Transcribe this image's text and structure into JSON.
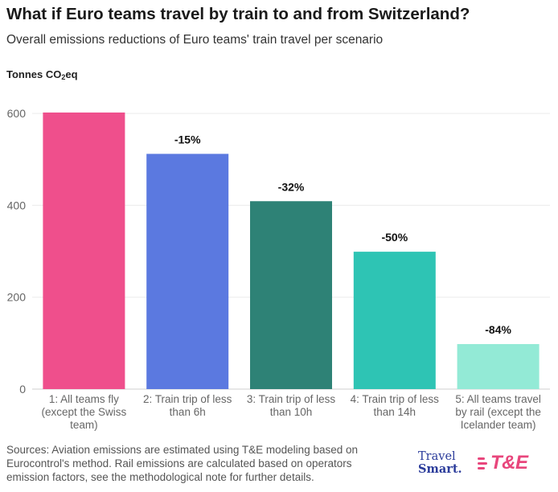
{
  "header": {
    "title": "What if Euro teams travel by train to and from Switzerland?",
    "subtitle": "Overall emissions reductions of Euro teams' train travel per scenario",
    "unit_prefix": "Tonnes CO",
    "unit_sub": "2",
    "unit_suffix": "eq"
  },
  "chart_data": {
    "type": "bar",
    "title": "What if Euro teams travel by train to and from Switzerland?",
    "ylabel": "Tonnes CO2eq",
    "ylim": [
      0,
      650
    ],
    "yticks": [
      0,
      200,
      400,
      600
    ],
    "grid": true,
    "categories": [
      [
        "1: All teams fly",
        "(except the Swiss",
        "team)"
      ],
      [
        "2: Train trip of less",
        "than 6h"
      ],
      [
        "3: Train trip of less",
        "than 10h"
      ],
      [
        "4: Train trip of less",
        "than 14h"
      ],
      [
        "5: All teams travel",
        "by rail (except the",
        "Icelander team)"
      ]
    ],
    "values": [
      602,
      512,
      409,
      299,
      98
    ],
    "data_labels": [
      "",
      "-15%",
      "-32%",
      "-50%",
      "-84%"
    ],
    "colors": [
      "#ef4f8c",
      "#5b79e0",
      "#2e8276",
      "#2ec4b4",
      "#93ead6"
    ]
  },
  "footer": {
    "sources": "Sources: Aviation emissions are estimated using T&E modeling based on Eurocontrol's method. Rail emissions are calculated based on operators emission factors, see the methodological note for further details.",
    "logo_travelsmart_line1": "Travel",
    "logo_travelsmart_line2": "Smart.",
    "logo_te": "T&E"
  }
}
